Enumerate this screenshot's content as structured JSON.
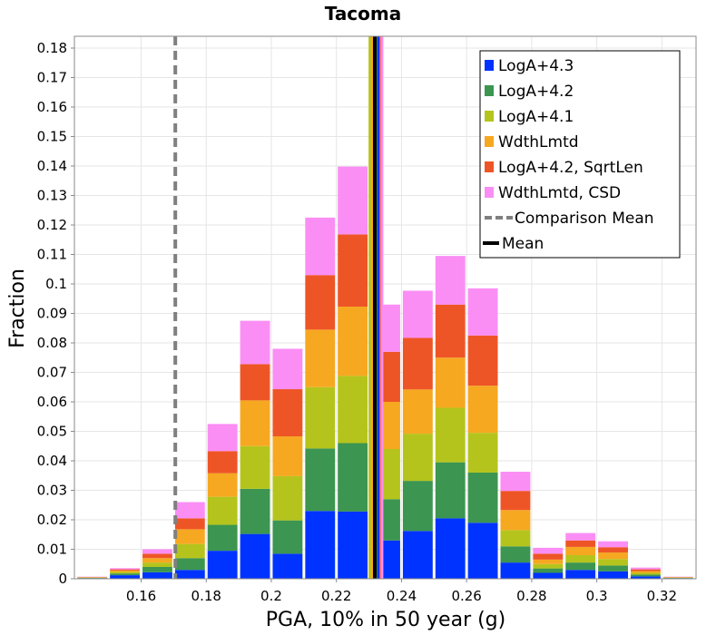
{
  "chart_data": {
    "type": "bar",
    "stacked": true,
    "title": "Tacoma",
    "xlabel": "PGA, 10% in 50 year (g)",
    "ylabel": "Fraction",
    "xlim": [
      0.1395,
      0.3305
    ],
    "ylim": [
      0,
      0.184
    ],
    "bin_width": 0.01,
    "x_ticks": [
      "0.16",
      "0.18",
      "0.2",
      "0.22",
      "0.24",
      "0.26",
      "0.28",
      "0.3",
      "0.32"
    ],
    "y_ticks": [
      "0",
      "0.01",
      "0.02",
      "0.03",
      "0.04",
      "0.05",
      "0.06",
      "0.07",
      "0.08",
      "0.09",
      "0.1",
      "0.11",
      "0.12",
      "0.13",
      "0.14",
      "0.15",
      "0.16",
      "0.17",
      "0.18"
    ],
    "bins": [
      0.145,
      0.155,
      0.165,
      0.175,
      0.185,
      0.195,
      0.205,
      0.215,
      0.225,
      0.235,
      0.245,
      0.255,
      0.265,
      0.275,
      0.285,
      0.295,
      0.305,
      0.315,
      0.325
    ],
    "series": [
      {
        "name": "LogA+4.3",
        "color": "#0033ff",
        "values": [
          0.0002,
          0.0012,
          0.0022,
          0.003,
          0.0095,
          0.0152,
          0.0085,
          0.023,
          0.0228,
          0.013,
          0.0162,
          0.0205,
          0.019,
          0.0055,
          0.002,
          0.003,
          0.0025,
          0.0008,
          0.0002
        ]
      },
      {
        "name": "LogA+4.2",
        "color": "#3c9550",
        "values": [
          0.0001,
          0.0006,
          0.0018,
          0.004,
          0.0088,
          0.0153,
          0.0113,
          0.0212,
          0.0232,
          0.014,
          0.017,
          0.019,
          0.017,
          0.0055,
          0.0015,
          0.0025,
          0.002,
          0.0006,
          0.0001
        ]
      },
      {
        "name": "LogA+4.1",
        "color": "#b5c41c",
        "values": [
          0.0001,
          0.0005,
          0.0015,
          0.0048,
          0.0095,
          0.0145,
          0.015,
          0.0208,
          0.0228,
          0.017,
          0.016,
          0.0185,
          0.0135,
          0.0055,
          0.0015,
          0.0025,
          0.0022,
          0.0006,
          0.0001
        ]
      },
      {
        "name": "WdthLmtd",
        "color": "#f6a821",
        "values": [
          0.0001,
          0.0005,
          0.0015,
          0.005,
          0.008,
          0.0155,
          0.0135,
          0.0195,
          0.0235,
          0.016,
          0.015,
          0.017,
          0.016,
          0.0068,
          0.0015,
          0.0028,
          0.0022,
          0.0006,
          0.0001
        ]
      },
      {
        "name": "LogA+4.2, SqrtLen",
        "color": "#ee5526",
        "values": [
          0.0001,
          0.0004,
          0.0015,
          0.0037,
          0.0075,
          0.0123,
          0.016,
          0.0185,
          0.0245,
          0.017,
          0.0175,
          0.018,
          0.017,
          0.0065,
          0.002,
          0.0022,
          0.0018,
          0.0006,
          0.0001
        ]
      },
      {
        "name": "WdthLmtd, CSD",
        "color": "#fa8ef4",
        "values": [
          0.0001,
          0.0004,
          0.0015,
          0.0055,
          0.0092,
          0.0147,
          0.0137,
          0.0195,
          0.023,
          0.016,
          0.016,
          0.0165,
          0.016,
          0.0065,
          0.002,
          0.0025,
          0.002,
          0.0006,
          0.0001
        ]
      }
    ],
    "vertical_lines": [
      {
        "name": "Comparison Mean",
        "x": 0.1705,
        "color": "#808080",
        "style": "dashed"
      },
      {
        "name": "Mean",
        "x": 0.2318,
        "color": "#000000",
        "style": "solid"
      }
    ],
    "individual_means": [
      {
        "x": 0.2303,
        "color": "#b5c41c"
      },
      {
        "x": 0.231,
        "color": "#f6a821"
      },
      {
        "x": 0.2322,
        "color": "#3c9550"
      },
      {
        "x": 0.233,
        "color": "#0033ff"
      },
      {
        "x": 0.2336,
        "color": "#ee5526"
      },
      {
        "x": 0.234,
        "color": "#fa8ef4"
      }
    ],
    "legend": {
      "position": "top-right",
      "entries": [
        {
          "label": "LogA+4.3",
          "color": "#0033ff",
          "kind": "box"
        },
        {
          "label": "LogA+4.2",
          "color": "#3c9550",
          "kind": "box"
        },
        {
          "label": "LogA+4.1",
          "color": "#b5c41c",
          "kind": "box"
        },
        {
          "label": "WdthLmtd",
          "color": "#f6a821",
          "kind": "box"
        },
        {
          "label": "LogA+4.2, SqrtLen",
          "color": "#ee5526",
          "kind": "box"
        },
        {
          "label": "WdthLmtd, CSD",
          "color": "#fa8ef4",
          "kind": "box"
        },
        {
          "label": "Comparison Mean",
          "color": "#808080",
          "kind": "dashed-line"
        },
        {
          "label": "Mean",
          "color": "#000000",
          "kind": "line"
        }
      ]
    },
    "grid": true
  }
}
